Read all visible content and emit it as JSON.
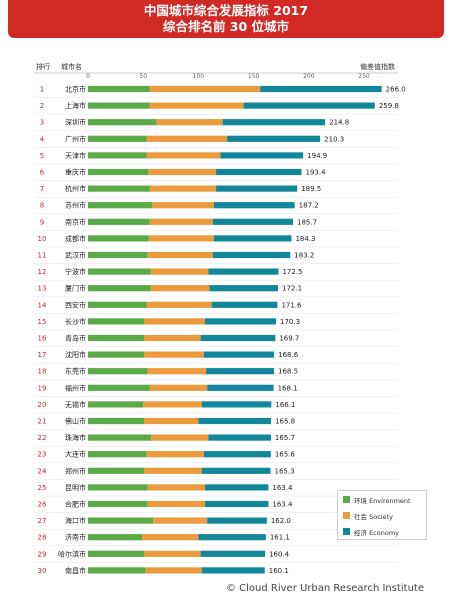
{
  "header": {
    "title": "中国城市综合发展指标 2017",
    "subtitle": "综合排名前 30 位城市"
  },
  "columns": {
    "rank": "排行",
    "city": "城市名",
    "score": "偏差值指数"
  },
  "source": "© Cloud River Urban Research Institute",
  "colors": {
    "environment": "#5aaa48",
    "society": "#eb9a3c",
    "economy": "#13879a",
    "rank_text": "#c0282b",
    "banner": "#d12a25"
  },
  "chart_data": {
    "type": "bar",
    "orientation": "horizontal",
    "stacked": true,
    "x_ticks": [
      0,
      50,
      100,
      150,
      200,
      250
    ],
    "xlim": [
      0,
      266
    ],
    "legend_position": "bottom-right",
    "legend": [
      "环境 Environment",
      "社会 Society",
      "经济 Economy"
    ],
    "categories": [
      "北京市",
      "上海市",
      "深圳市",
      "广州市",
      "天津市",
      "重庆市",
      "杭州市",
      "苏州市",
      "南京市",
      "成都市",
      "武汉市",
      "宁波市",
      "厦门市",
      "西安市",
      "长沙市",
      "青岛市",
      "沈阳市",
      "东莞市",
      "福州市",
      "无锡市",
      "佛山市",
      "珠海市",
      "大连市",
      "郑州市",
      "昆明市",
      "合肥市",
      "海口市",
      "济南市",
      "哈尔滨市",
      "南昌市"
    ],
    "ranks": [
      "1",
      "2",
      "3",
      "4",
      "5",
      "6",
      "7",
      "8",
      "9",
      "10",
      "11",
      "12",
      "13",
      "14",
      "15",
      "16",
      "17",
      "18",
      "19",
      "20",
      "21",
      "22",
      "23",
      "24",
      "25",
      "26",
      "27",
      "28",
      "29",
      "30"
    ],
    "totals": [
      266.0,
      259.8,
      214.8,
      210.3,
      194.9,
      193.4,
      189.5,
      187.2,
      185.7,
      184.3,
      183.2,
      172.5,
      172.1,
      171.6,
      170.3,
      169.7,
      168.6,
      168.5,
      168.1,
      166.1,
      165.8,
      165.7,
      165.6,
      165.3,
      163.4,
      163.4,
      162.0,
      161.1,
      160.4,
      160.1
    ],
    "total_labels": [
      "266.0",
      "259.8",
      "214.8",
      "210.3",
      "194.9",
      "193.4",
      "189.5",
      "187.2",
      "185.7",
      "184.3",
      "183.2",
      "172.5",
      "172.1",
      "171.6",
      "170.3",
      "169.7",
      "168.6",
      "168.5",
      "168.1",
      "166.1",
      "165.8",
      "165.7",
      "165.6",
      "165.3",
      "163.4",
      "163.4",
      "162.0",
      "161.1",
      "160.4",
      "160.1"
    ],
    "series": [
      {
        "name": "环境 Environment",
        "values": [
          56,
          56,
          62,
          53,
          53,
          55,
          56,
          58,
          56,
          55,
          54,
          57,
          57,
          53,
          51,
          51,
          51,
          54,
          56,
          50,
          51,
          57,
          53,
          51,
          54,
          54,
          59,
          49,
          51,
          52
        ]
      },
      {
        "name": "社会 Society",
        "values": [
          100,
          85,
          60,
          73,
          67,
          61,
          60,
          56,
          57,
          59,
          59,
          52,
          53,
          59,
          55,
          51,
          54,
          53,
          52,
          53,
          49,
          52,
          52,
          52,
          52,
          52,
          49,
          51,
          51,
          51
        ]
      },
      {
        "name": "经济 Economy",
        "values": [
          110.0,
          118.8,
          92.8,
          84.3,
          74.9,
          77.4,
          73.5,
          73.2,
          72.7,
          70.3,
          70.2,
          63.5,
          62.1,
          59.6,
          64.3,
          67.7,
          63.6,
          61.5,
          60.1,
          63.1,
          65.8,
          56.7,
          60.6,
          62.3,
          57.4,
          57.4,
          54.0,
          61.1,
          58.4,
          57.1
        ]
      }
    ]
  }
}
